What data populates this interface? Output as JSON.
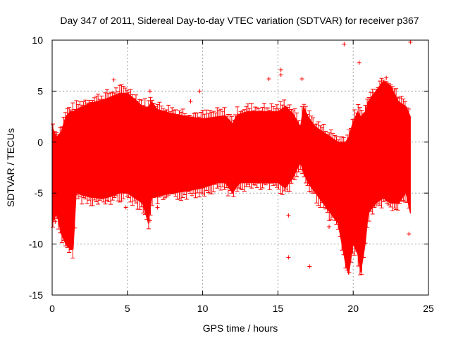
{
  "chart_data": {
    "type": "scatter",
    "title": "Day 347 of 2011, Sidereal Day-to-day VTEC variation (SDTVAR) for receiver p367",
    "xlabel": "GPS time / hours",
    "ylabel": "SDTVAR / TECUs",
    "xlim": [
      0,
      25
    ],
    "ylim": [
      -15,
      10
    ],
    "xticks": [
      0,
      5,
      10,
      15,
      20,
      25
    ],
    "yticks": [
      -15,
      -10,
      -5,
      0,
      5,
      10
    ],
    "grid": true,
    "marker": "+",
    "series_color": "#ff0000",
    "envelope": {
      "x": [
        0.0,
        0.3,
        0.6,
        0.9,
        1.2,
        1.4,
        1.6,
        2.0,
        2.5,
        3.0,
        3.5,
        4.0,
        4.5,
        5.0,
        5.5,
        6.0,
        6.4,
        6.6,
        7.0,
        8.0,
        9.0,
        10.0,
        11.0,
        11.5,
        12.0,
        12.2,
        12.5,
        13.0,
        14.0,
        15.0,
        15.5,
        16.0,
        16.5,
        16.7,
        17.0,
        17.5,
        18.0,
        18.5,
        19.0,
        19.5,
        19.7,
        20.0,
        20.3,
        20.5,
        20.8,
        21.0,
        21.5,
        22.0,
        22.5,
        23.0,
        23.5,
        23.8
      ],
      "upper": [
        1.5,
        0.5,
        1.0,
        2.5,
        3.0,
        3.0,
        3.2,
        3.5,
        3.8,
        4.0,
        4.2,
        4.5,
        4.8,
        4.8,
        4.2,
        3.5,
        3.4,
        4.0,
        3.2,
        2.8,
        2.5,
        2.3,
        2.5,
        2.6,
        1.8,
        2.5,
        2.8,
        3.0,
        3.0,
        3.0,
        3.5,
        2.8,
        1.5,
        3.5,
        2.5,
        1.5,
        1.0,
        0.5,
        0.0,
        0.0,
        0.5,
        2.0,
        3.0,
        2.5,
        3.0,
        4.0,
        5.0,
        6.0,
        5.5,
        4.0,
        3.5,
        2.5
      ],
      "lower": [
        -8.0,
        -7.0,
        -9.0,
        -10.0,
        -10.5,
        -10.5,
        -5.0,
        -5.2,
        -5.4,
        -5.5,
        -5.5,
        -5.3,
        -5.0,
        -5.0,
        -5.5,
        -6.0,
        -8.0,
        -5.5,
        -5.3,
        -5.0,
        -4.8,
        -4.5,
        -4.0,
        -4.0,
        -5.0,
        -4.5,
        -4.0,
        -4.0,
        -4.0,
        -4.0,
        -4.5,
        -3.5,
        -2.0,
        -3.0,
        -4.0,
        -5.0,
        -6.0,
        -7.0,
        -8.0,
        -12.0,
        -13.0,
        -10.0,
        -11.0,
        -12.8,
        -10.0,
        -7.0,
        -6.0,
        -5.5,
        -6.0,
        -6.0,
        -5.0,
        -7.0
      ]
    },
    "outliers": [
      {
        "x": 4.1,
        "y": 6.1
      },
      {
        "x": 6.5,
        "y": 5.0
      },
      {
        "x": 9.2,
        "y": 4.0
      },
      {
        "x": 9.8,
        "y": 5.0
      },
      {
        "x": 14.4,
        "y": 6.2
      },
      {
        "x": 15.2,
        "y": 7.1
      },
      {
        "x": 15.2,
        "y": 6.6
      },
      {
        "x": 16.6,
        "y": 6.2
      },
      {
        "x": 15.7,
        "y": -7.2
      },
      {
        "x": 15.7,
        "y": -11.3
      },
      {
        "x": 17.1,
        "y": -12.2
      },
      {
        "x": 19.4,
        "y": 9.6
      },
      {
        "x": 23.8,
        "y": 9.8
      },
      {
        "x": 23.7,
        "y": -9.0
      },
      {
        "x": 4.9,
        "y": -6.4
      },
      {
        "x": 6.5,
        "y": -7.7
      },
      {
        "x": 7.0,
        "y": -6.4
      },
      {
        "x": 0.2,
        "y": -7.8
      },
      {
        "x": 1.0,
        "y": -9.8
      },
      {
        "x": 20.4,
        "y": 7.8
      },
      {
        "x": 22.2,
        "y": 6.3
      },
      {
        "x": 18.4,
        "y": -8.3
      }
    ]
  }
}
